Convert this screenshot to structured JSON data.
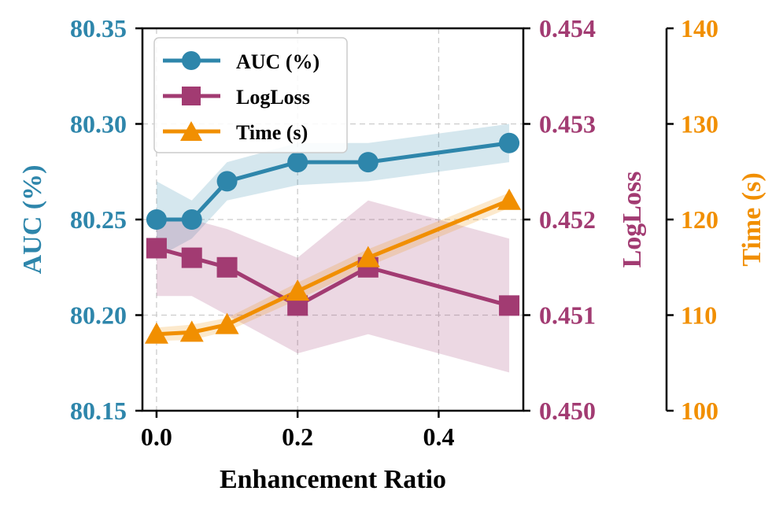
{
  "chart_data": {
    "type": "line",
    "xlabel": "Enhancement Ratio",
    "x": [
      0.0,
      0.05,
      0.1,
      0.2,
      0.3,
      0.5
    ],
    "xlim": [
      -0.02,
      0.52
    ],
    "xticks": [
      0.0,
      0.2,
      0.4
    ],
    "xtick_labels": [
      "0.0",
      "0.2",
      "0.4"
    ],
    "grid": true,
    "legend_position": "top-left",
    "series": [
      {
        "name": "AUC (%)",
        "axis": "auc",
        "marker": "circle",
        "color": "#2E86AB",
        "values": [
          80.25,
          80.25,
          80.27,
          80.28,
          80.28,
          80.29
        ],
        "band_lower": [
          80.23,
          80.24,
          80.26,
          80.268,
          80.27,
          80.28
        ],
        "band_upper": [
          80.27,
          80.26,
          80.28,
          80.29,
          80.29,
          80.3
        ]
      },
      {
        "name": "LogLoss",
        "axis": "logloss",
        "marker": "square",
        "color": "#A23B72",
        "values": [
          0.4517,
          0.4516,
          0.4515,
          0.4511,
          0.4515,
          0.4511
        ],
        "band_lower": [
          0.4512,
          0.4512,
          0.451,
          0.4506,
          0.4508,
          0.4504
        ],
        "band_upper": [
          0.452,
          0.452,
          0.4519,
          0.4516,
          0.4522,
          0.4518
        ]
      },
      {
        "name": "Time (s)",
        "axis": "time",
        "marker": "triangle",
        "color": "#F18F01",
        "values": [
          108.0,
          108.2,
          109.0,
          112.5,
          116.0,
          122.0
        ],
        "band_lower": [
          107.3,
          107.4,
          108.3,
          111.6,
          115.1,
          121.2
        ],
        "band_upper": [
          108.7,
          109.0,
          109.7,
          113.4,
          116.9,
          122.8
        ]
      }
    ],
    "axes": {
      "auc": {
        "label": "AUC (%)",
        "color": "#2E86AB",
        "ylim": [
          80.15,
          80.35
        ],
        "ticks": [
          80.15,
          80.2,
          80.25,
          80.3,
          80.35
        ],
        "tick_labels": [
          "80.15",
          "80.20",
          "80.25",
          "80.30",
          "80.35"
        ]
      },
      "logloss": {
        "label": "LogLoss",
        "color": "#A23B72",
        "ylim": [
          0.45,
          0.454
        ],
        "ticks": [
          0.45,
          0.451,
          0.452,
          0.453,
          0.454
        ],
        "tick_labels": [
          "0.450",
          "0.451",
          "0.452",
          "0.453",
          "0.454"
        ]
      },
      "time": {
        "label": "Time (s)",
        "color": "#F18F01",
        "ylim": [
          100,
          140
        ],
        "ticks": [
          100,
          110,
          120,
          130,
          140
        ],
        "tick_labels": [
          "100",
          "110",
          "120",
          "130",
          "140"
        ]
      }
    }
  }
}
